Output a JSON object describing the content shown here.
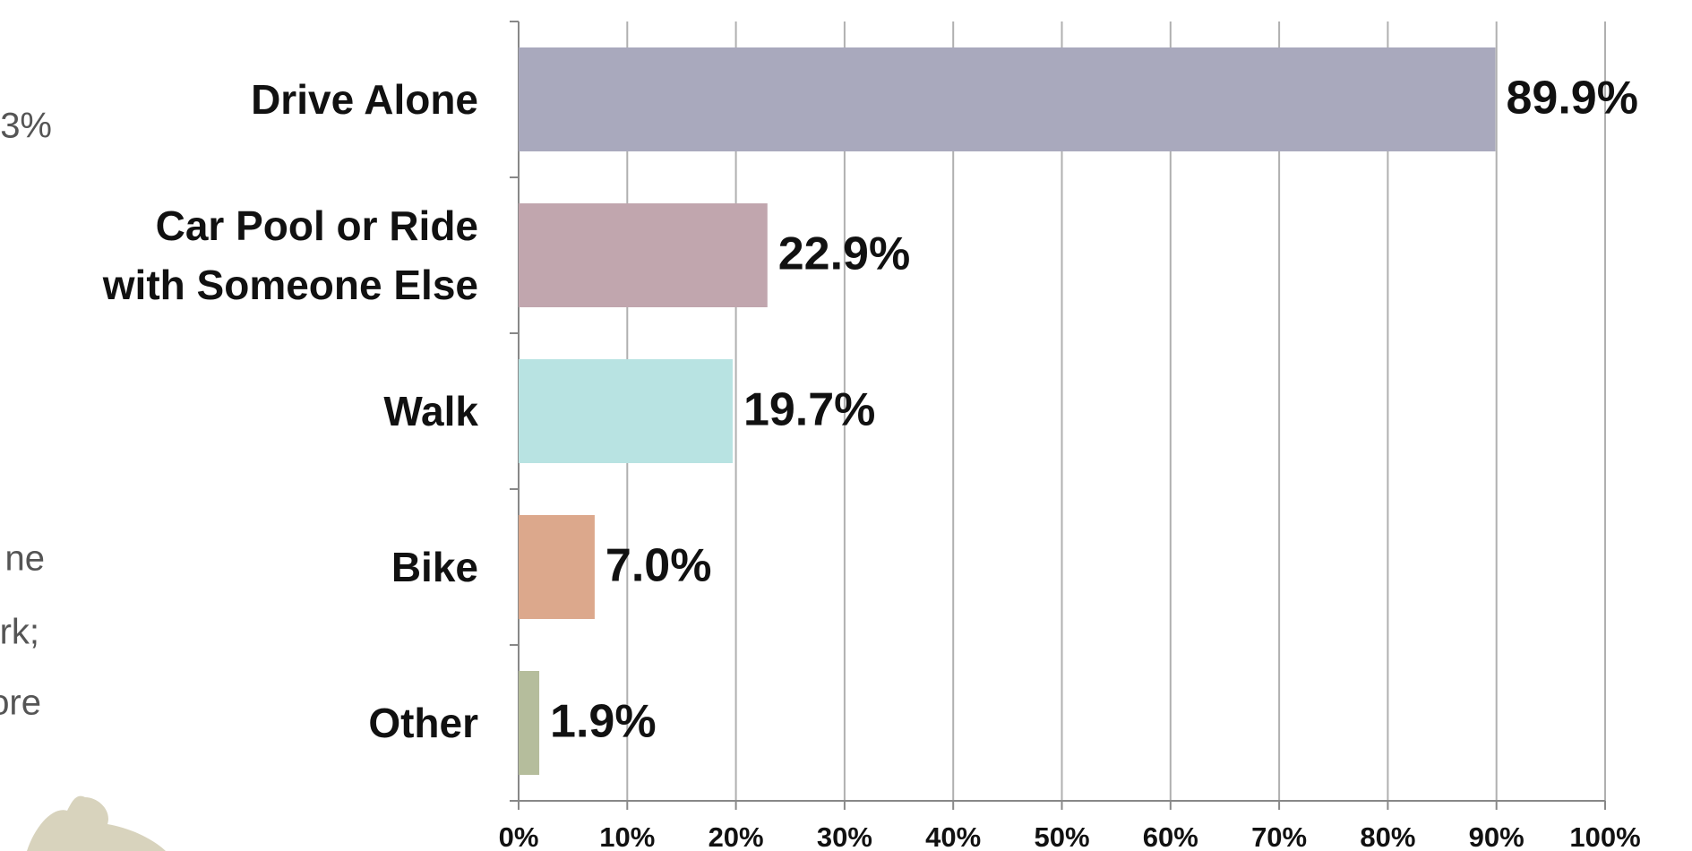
{
  "side_text": [
    "3%",
    "ne",
    "rk;",
    "ore"
  ],
  "chart_data": {
    "type": "bar",
    "orientation": "horizontal",
    "categories": [
      "Drive Alone",
      "Car Pool or Ride\nwith Someone Else",
      "Walk",
      "Bike",
      "Other"
    ],
    "values": [
      89.9,
      22.9,
      19.7,
      7.0,
      1.9
    ],
    "value_labels": [
      "89.9%",
      "22.9%",
      "19.7%",
      "7.0%",
      "1.9%"
    ],
    "colors": [
      "#a9a9bd",
      "#c1a6ae",
      "#b8e3e2",
      "#dca88c",
      "#b5bd9c"
    ],
    "xlim": [
      0,
      100
    ],
    "xticks": [
      {
        "value": 0,
        "label": "0%"
      },
      {
        "value": 10,
        "label": "10%"
      },
      {
        "value": 20,
        "label": "20%"
      },
      {
        "value": 30,
        "label": "30%"
      },
      {
        "value": 40,
        "label": "40%"
      },
      {
        "value": 50,
        "label": "50%"
      },
      {
        "value": 60,
        "label": "60%"
      },
      {
        "value": 70,
        "label": "70%"
      },
      {
        "value": 80,
        "label": "80%"
      },
      {
        "value": 90,
        "label": "90%"
      },
      {
        "value": 100,
        "label": "100%"
      }
    ],
    "grid": true
  }
}
